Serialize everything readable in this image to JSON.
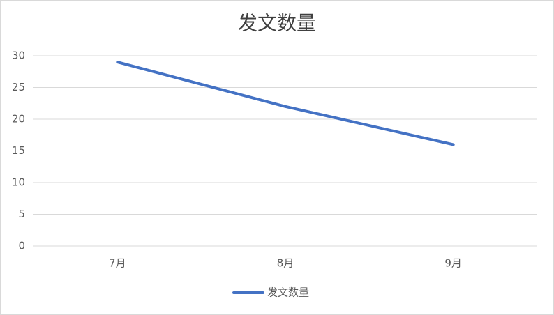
{
  "chart_data": {
    "type": "line",
    "title": "发文数量",
    "categories": [
      "7月",
      "8月",
      "9月"
    ],
    "series": [
      {
        "name": "发文数量",
        "color": "#4472c4",
        "values": [
          29,
          22,
          16
        ]
      }
    ],
    "ylim": [
      0,
      30
    ],
    "yticks": [
      0,
      5,
      10,
      15,
      20,
      25,
      30
    ],
    "grid": true,
    "legend": "bottom"
  }
}
